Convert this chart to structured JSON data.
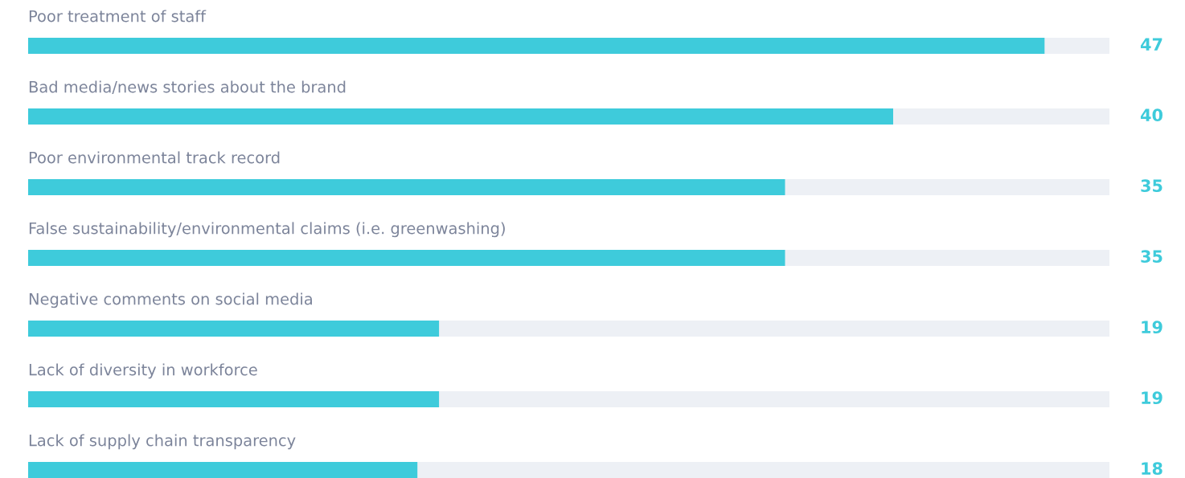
{
  "chart_data": {
    "type": "bar",
    "orientation": "horizontal",
    "categories": [
      "Poor treatment of staff",
      "Bad media/news stories about the brand",
      "Poor environmental track record",
      "False sustainability/environmental claims (i.e. greenwashing)",
      "Negative comments on social media",
      "Lack of diversity in workforce",
      "Lack of supply chain transparency"
    ],
    "values": [
      47,
      40,
      35,
      35,
      19,
      19,
      18
    ],
    "color": "#3ecbdb",
    "xlim": [
      0,
      50
    ],
    "data_labels": true
  }
}
